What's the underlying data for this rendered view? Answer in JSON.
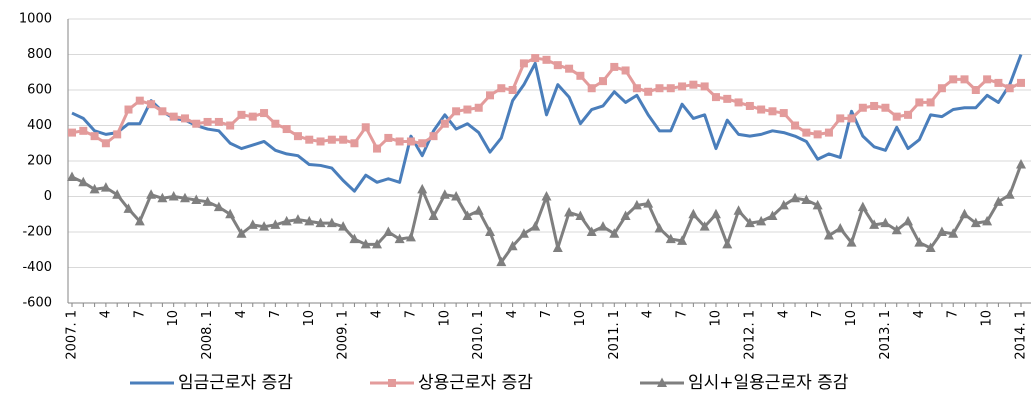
{
  "chart_data": {
    "type": "line",
    "categories": [
      "2007. 1",
      null,
      null,
      "4",
      null,
      null,
      "7",
      null,
      null,
      "10",
      null,
      null,
      "2008. 1",
      null,
      null,
      "4",
      null,
      null,
      "7",
      null,
      null,
      "10",
      null,
      null,
      "2009. 1",
      null,
      null,
      "4",
      null,
      null,
      "7",
      null,
      null,
      "10",
      null,
      null,
      "2010. 1",
      null,
      null,
      "4",
      null,
      null,
      "7",
      null,
      null,
      "10",
      null,
      null,
      "2011. 1",
      null,
      null,
      "4",
      null,
      null,
      "7",
      null,
      null,
      "10",
      null,
      null,
      "2012. 1",
      null,
      null,
      "4",
      null,
      null,
      "7",
      null,
      null,
      "10",
      null,
      null,
      "2013. 1",
      null,
      null,
      "4",
      null,
      null,
      "7",
      null,
      null,
      "10",
      null,
      null,
      "2014. 1"
    ],
    "series": [
      {
        "name": "임금근로자 증감",
        "color": "#4a7ebb",
        "marker": "none",
        "values": [
          470,
          440,
          370,
          350,
          360,
          410,
          410,
          540,
          480,
          440,
          430,
          400,
          380,
          370,
          300,
          270,
          290,
          310,
          260,
          240,
          230,
          180,
          175,
          160,
          90,
          30,
          120,
          80,
          100,
          80,
          340,
          230,
          370,
          460,
          380,
          410,
          360,
          250,
          330,
          540,
          630,
          750,
          460,
          630,
          560,
          410,
          490,
          510,
          590,
          530,
          570,
          460,
          370,
          370,
          520,
          440,
          460,
          270,
          430,
          350,
          340,
          350,
          370,
          360,
          340,
          310,
          210,
          240,
          220,
          480,
          340,
          280,
          260,
          390,
          270,
          320,
          460,
          450,
          490,
          500,
          500,
          570,
          530,
          630,
          800
        ]
      },
      {
        "name": "상용근로자 증감",
        "color": "#e39b9b",
        "marker": "square",
        "values": [
          360,
          370,
          340,
          300,
          350,
          490,
          540,
          520,
          480,
          450,
          440,
          410,
          420,
          420,
          400,
          460,
          450,
          470,
          410,
          380,
          340,
          320,
          310,
          320,
          320,
          300,
          390,
          270,
          330,
          310,
          310,
          300,
          340,
          410,
          480,
          490,
          500,
          570,
          610,
          600,
          750,
          780,
          770,
          740,
          720,
          680,
          610,
          650,
          730,
          710,
          610,
          590,
          610,
          610,
          620,
          630,
          620,
          560,
          550,
          530,
          510,
          490,
          480,
          470,
          400,
          360,
          350,
          360,
          440,
          440,
          500,
          510,
          500,
          450,
          460,
          530,
          530,
          610,
          660,
          660,
          600,
          660,
          640,
          610,
          640
        ]
      },
      {
        "name": "임시+일용근로자 증감",
        "color": "#7f7f7f",
        "marker": "triangle",
        "values": [
          110,
          80,
          40,
          50,
          10,
          -70,
          -140,
          10,
          -10,
          0,
          -10,
          -20,
          -30,
          -60,
          -100,
          -210,
          -160,
          -170,
          -160,
          -140,
          -130,
          -140,
          -150,
          -150,
          -170,
          -240,
          -270,
          -270,
          -200,
          -240,
          -230,
          40,
          -110,
          10,
          0,
          -110,
          -80,
          -200,
          -370,
          -280,
          -210,
          -170,
          0,
          -290,
          -90,
          -110,
          -200,
          -170,
          -210,
          -110,
          -50,
          -40,
          -180,
          -240,
          -250,
          -100,
          -170,
          -100,
          -270,
          -80,
          -150,
          -140,
          -110,
          -50,
          -10,
          -20,
          -50,
          -220,
          -180,
          -260,
          -60,
          -160,
          -150,
          -190,
          -140,
          -260,
          -290,
          -200,
          -210,
          -100,
          -150,
          -140,
          -30,
          10,
          180
        ]
      }
    ],
    "ylim": [
      -600,
      1000
    ],
    "yticks": [
      -600,
      -400,
      -200,
      0,
      200,
      400,
      600,
      800,
      1000
    ],
    "grid": true
  }
}
